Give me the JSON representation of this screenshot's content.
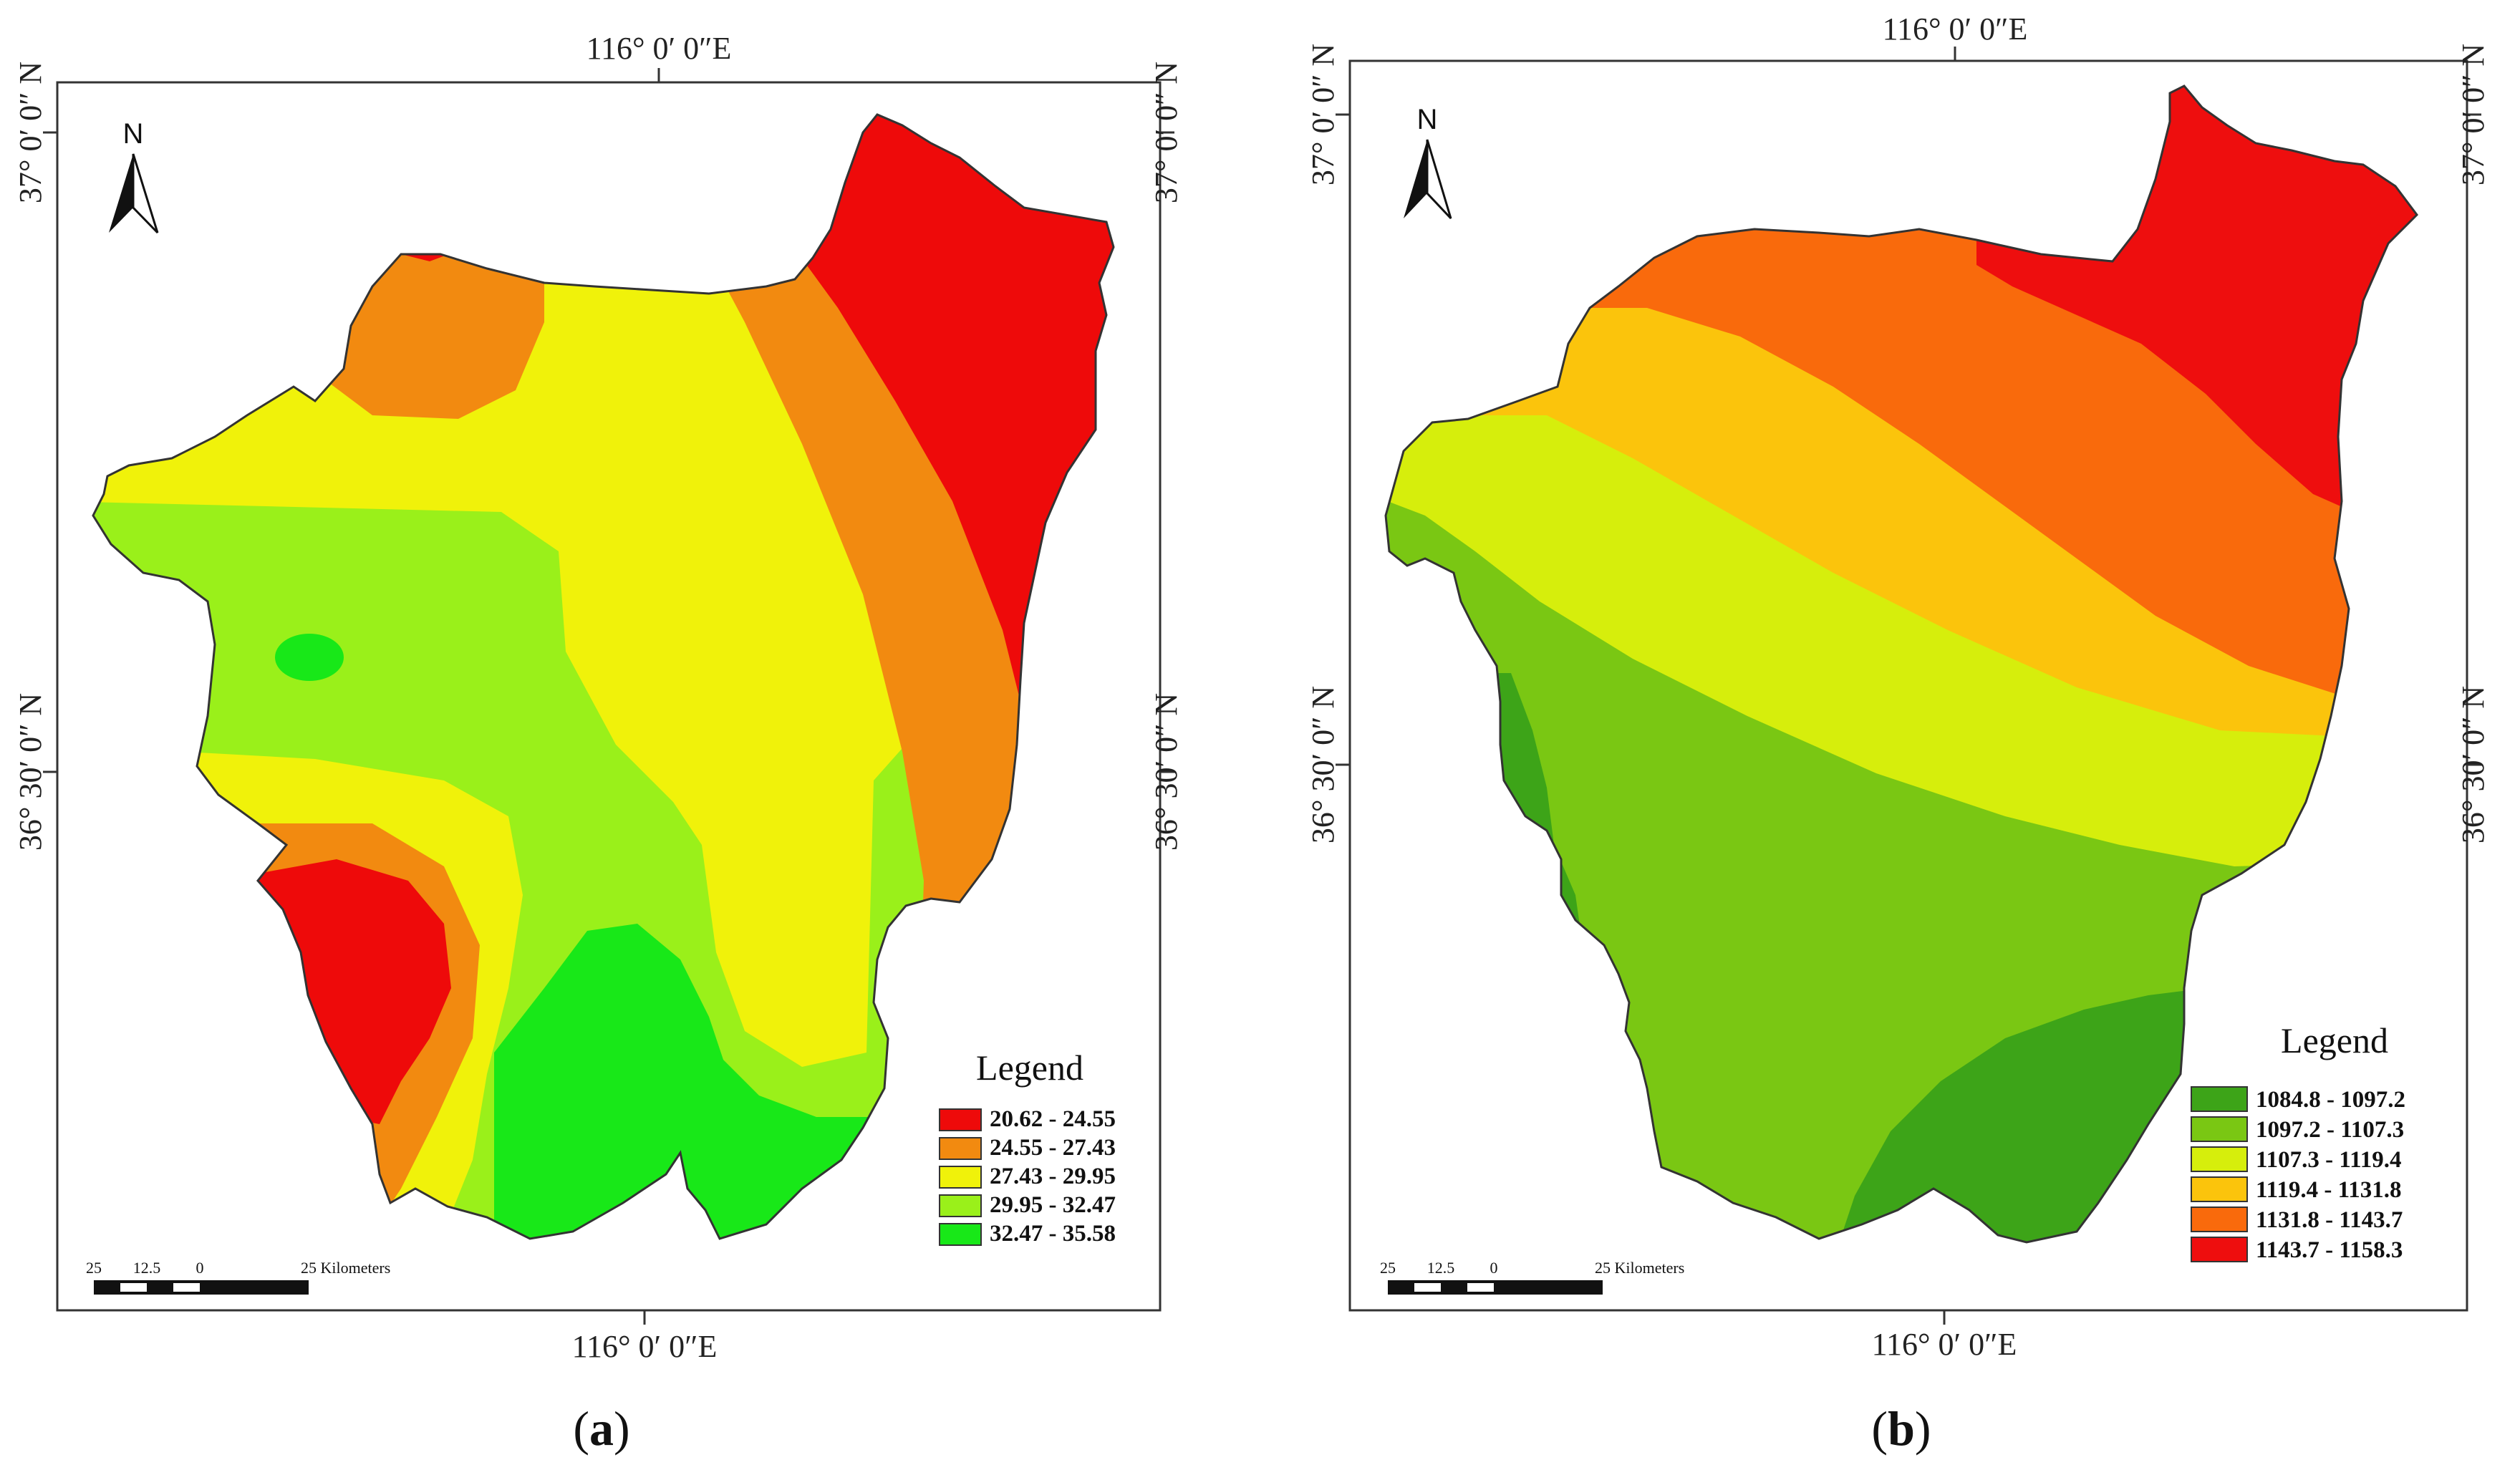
{
  "panel_a": {
    "top_lon": "116° 0′ 0″E",
    "bottom_lon": "116° 0′ 0″E",
    "left_lat_top": "37° 0′ 0″ N",
    "left_lat_mid": "36° 30′ 0″ N",
    "right_lat_top": "37° 0′ 0″ N",
    "right_lat_mid": "36° 30′ 0″ N",
    "north_label": "N",
    "legend_title": "Legend",
    "legend": [
      {
        "label": "20.62 - 24.55",
        "color": "#ee0a0a"
      },
      {
        "label": "24.55 - 27.43",
        "color": "#f28a10"
      },
      {
        "label": "27.43 - 29.95",
        "color": "#f0f20a"
      },
      {
        "label": "29.95 - 32.47",
        "color": "#9af01a"
      },
      {
        "label": "32.47 - 35.58",
        "color": "#18e818"
      }
    ],
    "scale": {
      "t1": "25",
      "t2": "12.5",
      "t3": "0",
      "t4": "25 Kilometers"
    },
    "caption_open": "(",
    "caption_letter": "a",
    "caption_close": ")"
  },
  "panel_b": {
    "top_lon": "116° 0′ 0″E",
    "bottom_lon": "116° 0′ 0″E",
    "left_lat_top": "37° 0′ 0″ N",
    "left_lat_mid": "36° 30′ 0″ N",
    "right_lat_top": "37° 0′ 0″ N",
    "right_lat_mid": "36° 30′ 0″ N",
    "north_label": "N",
    "legend_title": "Legend",
    "legend": [
      {
        "label": "1084.8 - 1097.2",
        "color": "#3da418"
      },
      {
        "label": "1097.2 - 1107.3",
        "color": "#7ac713"
      },
      {
        "label": "1107.3 - 1119.4",
        "color": "#d6ee0c"
      },
      {
        "label": "1119.4 - 1131.8",
        "color": "#fbc40c"
      },
      {
        "label": "1131.8 - 1143.7",
        "color": "#f96a0c"
      },
      {
        "label": "1143.7 - 1158.3",
        "color": "#ee0e0e"
      }
    ],
    "scale": {
      "t1": "25",
      "t2": "12.5",
      "t3": "0",
      "t4": "25 Kilometers"
    },
    "caption_open": "(",
    "caption_letter": "b",
    "caption_close": ")"
  }
}
